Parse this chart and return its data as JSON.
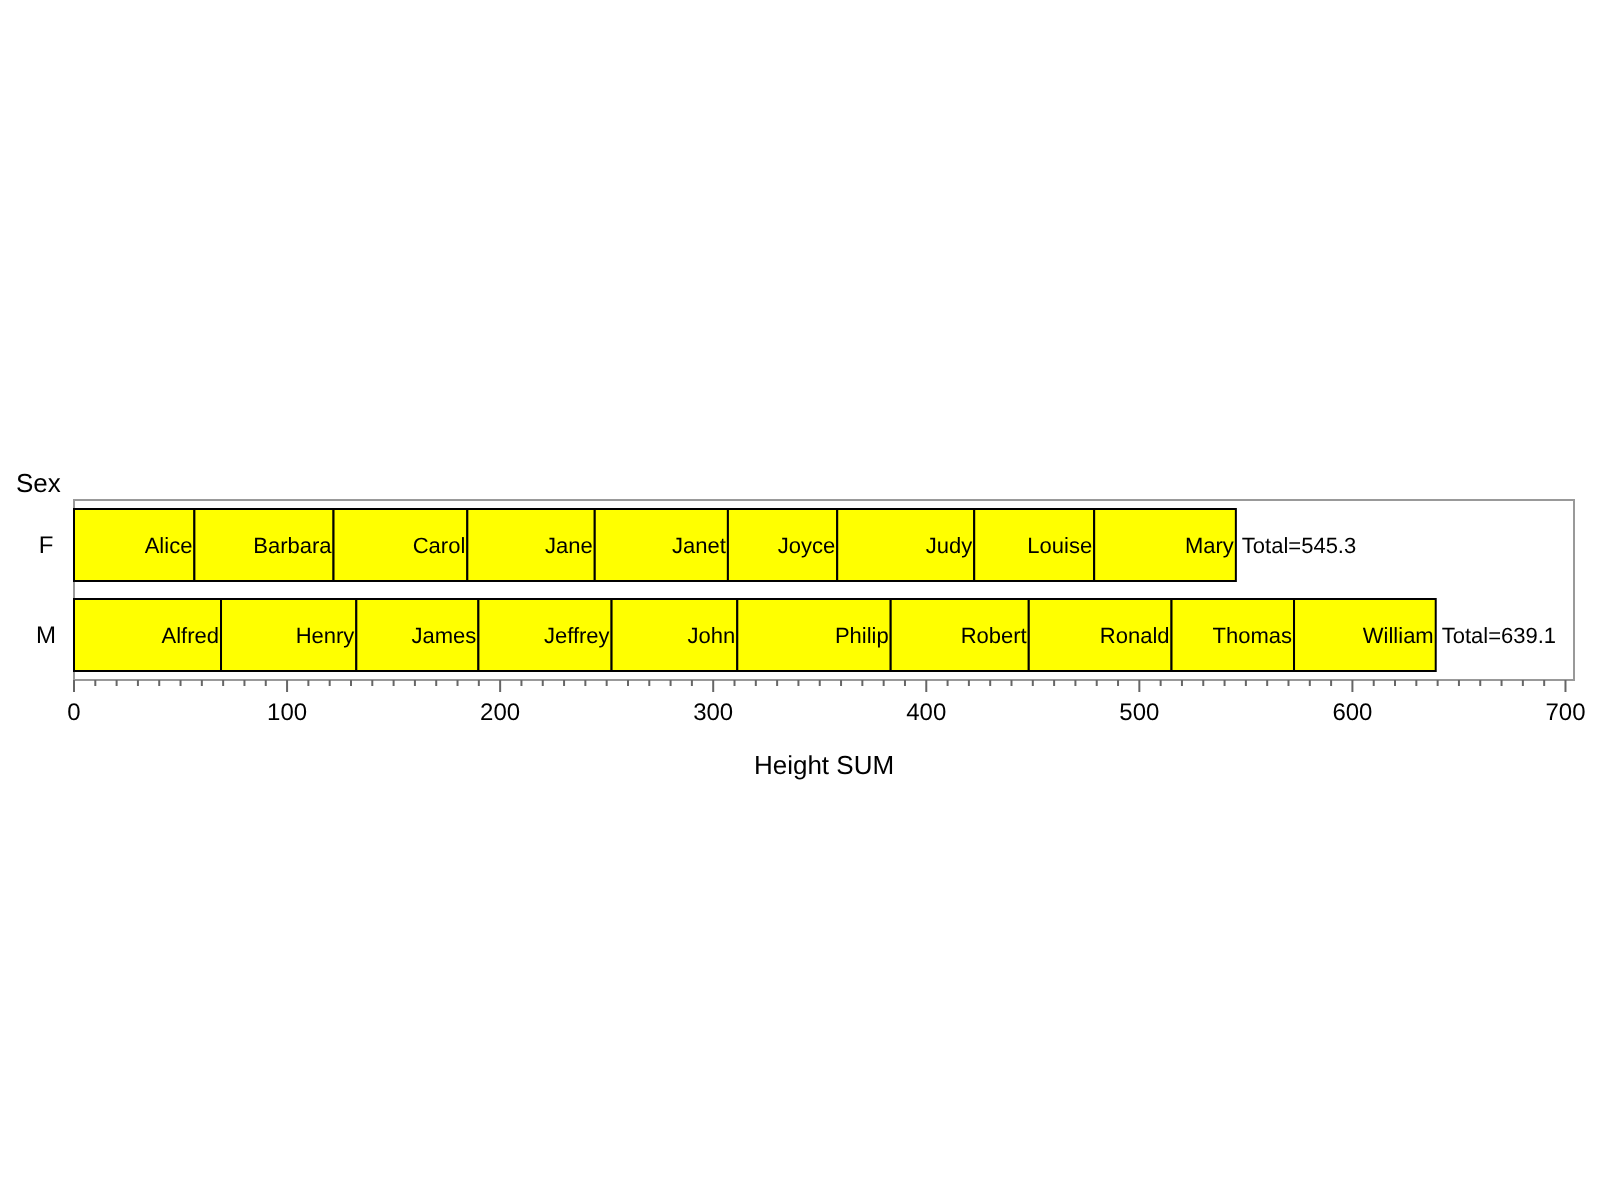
{
  "chart_data": {
    "type": "bar",
    "orientation": "horizontal",
    "stacked": true,
    "ylabel": "Sex",
    "xlabel": "Height SUM",
    "categories": [
      "F",
      "M"
    ],
    "xlim": [
      0,
      704
    ],
    "xticks": [
      0,
      {
        "value": 10,
        "label": null
      },
      {
        "value": 20,
        "label": null
      },
      {
        "value": 30,
        "label": null
      },
      {
        "value": 40,
        "label": null
      },
      {
        "value": 50,
        "label": null
      },
      {
        "value": 60,
        "label": null
      },
      {
        "value": 70,
        "label": null
      },
      {
        "value": 80,
        "label": null
      },
      {
        "value": 90,
        "label": null
      },
      100,
      {
        "value": 110,
        "label": null
      },
      {
        "value": 120,
        "label": null
      },
      {
        "value": 130,
        "label": null
      },
      {
        "value": 140,
        "label": null
      },
      {
        "value": 150,
        "label": null
      },
      {
        "value": 160,
        "label": null
      },
      {
        "value": 170,
        "label": null
      },
      {
        "value": 180,
        "label": null
      },
      {
        "value": 190,
        "label": null
      },
      200,
      {
        "value": 210,
        "label": null
      },
      {
        "value": 220,
        "label": null
      },
      {
        "value": 230,
        "label": null
      },
      {
        "value": 240,
        "label": null
      },
      {
        "value": 250,
        "label": null
      },
      {
        "value": 260,
        "label": null
      },
      {
        "value": 270,
        "label": null
      },
      {
        "value": 280,
        "label": null
      },
      {
        "value": 290,
        "label": null
      },
      300,
      {
        "value": 310,
        "label": null
      },
      {
        "value": 320,
        "label": null
      },
      {
        "value": 330,
        "label": null
      },
      {
        "value": 340,
        "label": null
      },
      {
        "value": 350,
        "label": null
      },
      {
        "value": 360,
        "label": null
      },
      {
        "value": 370,
        "label": null
      },
      {
        "value": 380,
        "label": null
      },
      {
        "value": 390,
        "label": null
      },
      400,
      {
        "value": 410,
        "label": null
      },
      {
        "value": 420,
        "label": null
      },
      {
        "value": 430,
        "label": null
      },
      {
        "value": 440,
        "label": null
      },
      {
        "value": 450,
        "label": null
      },
      {
        "value": 460,
        "label": null
      },
      {
        "value": 470,
        "label": null
      },
      {
        "value": 480,
        "label": null
      },
      {
        "value": 490,
        "label": null
      },
      500,
      {
        "value": 510,
        "label": null
      },
      {
        "value": 520,
        "label": null
      },
      {
        "value": 530,
        "label": null
      },
      {
        "value": 540,
        "label": null
      },
      {
        "value": 550,
        "label": null
      },
      {
        "value": 560,
        "label": null
      },
      {
        "value": 570,
        "label": null
      },
      {
        "value": 580,
        "label": null
      },
      {
        "value": 590,
        "label": null
      },
      600,
      {
        "value": 610,
        "label": null
      },
      {
        "value": 620,
        "label": null
      },
      {
        "value": 630,
        "label": null
      },
      {
        "value": 640,
        "label": null
      },
      {
        "value": 650,
        "label": null
      },
      {
        "value": 660,
        "label": null
      },
      {
        "value": 670,
        "label": null
      },
      {
        "value": 680,
        "label": null
      },
      {
        "value": 690,
        "label": null
      },
      700
    ],
    "totals": [
      "Total=545.3",
      "Total=639.1"
    ],
    "grid": false,
    "series": [
      {
        "name": "Alice",
        "color": "#ffff00",
        "values": [
          56.5,
          null
        ]
      },
      {
        "name": "Barbara",
        "color": "#ffff00",
        "values": [
          65.3,
          null
        ]
      },
      {
        "name": "Carol",
        "color": "#ffff00",
        "values": [
          62.8,
          null
        ]
      },
      {
        "name": "Jane",
        "color": "#ffff00",
        "values": [
          59.8,
          null
        ]
      },
      {
        "name": "Janet",
        "color": "#ffff00",
        "values": [
          62.5,
          null
        ]
      },
      {
        "name": "Joyce",
        "color": "#ffff00",
        "values": [
          51.3,
          null
        ]
      },
      {
        "name": "Judy",
        "color": "#ffff00",
        "values": [
          64.3,
          null
        ]
      },
      {
        "name": "Louise",
        "color": "#ffff00",
        "values": [
          56.3,
          null
        ]
      },
      {
        "name": "Mary",
        "color": "#ffff00",
        "values": [
          66.5,
          null
        ]
      },
      {
        "name": "Alfred",
        "color": "#ffff00",
        "values": [
          null,
          69
        ]
      },
      {
        "name": "Henry",
        "color": "#ffff00",
        "values": [
          null,
          63.5
        ]
      },
      {
        "name": "James",
        "color": "#ffff00",
        "values": [
          null,
          57.3
        ]
      },
      {
        "name": "Jeffrey",
        "color": "#ffff00",
        "values": [
          null,
          62.5
        ]
      },
      {
        "name": "John",
        "color": "#ffff00",
        "values": [
          null,
          59
        ]
      },
      {
        "name": "Philip",
        "color": "#ffff00",
        "values": [
          null,
          72
        ]
      },
      {
        "name": "Robert",
        "color": "#ffff00",
        "values": [
          null,
          64.8
        ]
      },
      {
        "name": "Ronald",
        "color": "#ffff00",
        "values": [
          null,
          67
        ]
      },
      {
        "name": "Thomas",
        "color": "#ffff00",
        "values": [
          null,
          57.5
        ]
      },
      {
        "name": "William",
        "color": "#ffff00",
        "values": [
          null,
          66.5
        ]
      }
    ]
  }
}
